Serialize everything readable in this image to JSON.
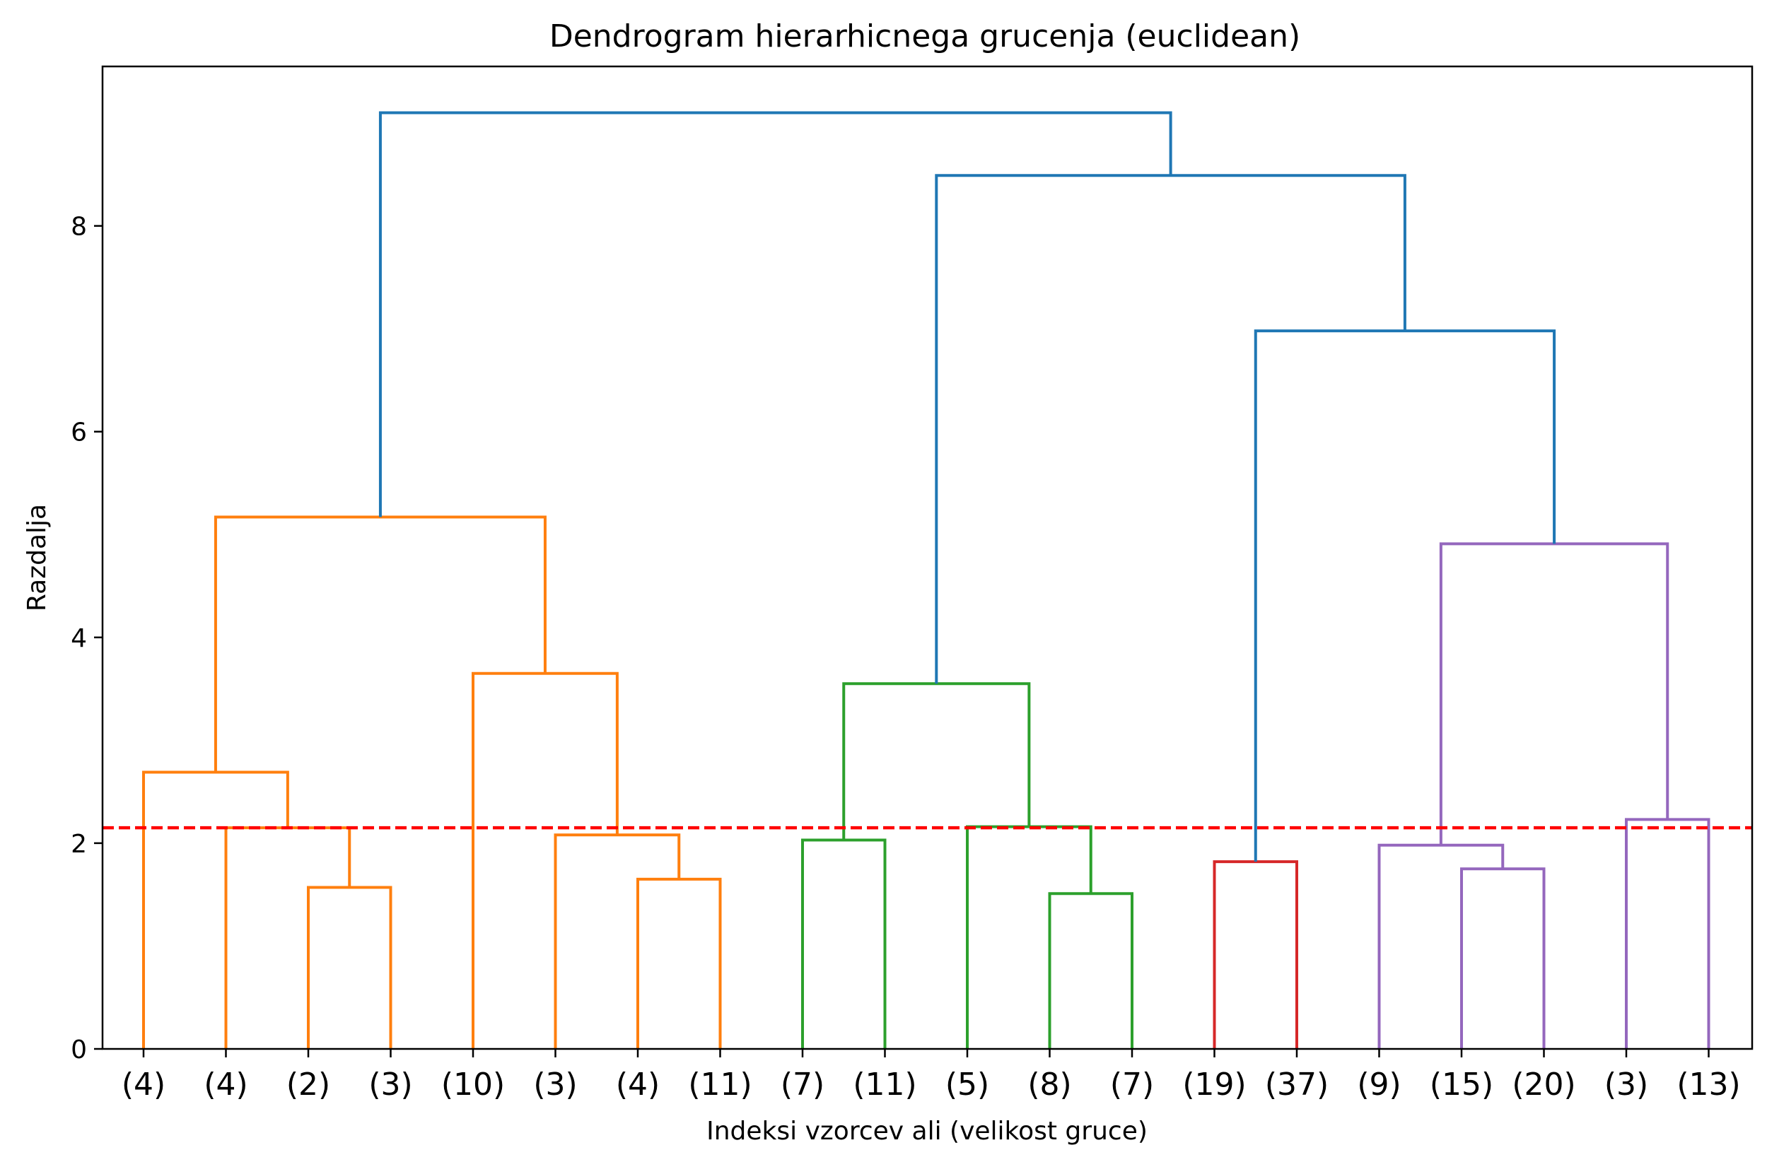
{
  "chart_data": {
    "type": "dendrogram",
    "title": "Dendrogram hierarhicnega grucenja (euclidean)",
    "xlabel": "Indeksi vzorcev ali (velikost gruce)",
    "ylabel": "Razdalja",
    "ylim": [
      0,
      9.55
    ],
    "yticks": [
      0,
      2,
      4,
      6,
      8
    ],
    "grid": false,
    "leaves": [
      "(4)",
      "(4)",
      "(2)",
      "(3)",
      "(10)",
      "(3)",
      "(4)",
      "(11)",
      "(7)",
      "(11)",
      "(5)",
      "(8)",
      "(7)",
      "(19)",
      "(37)",
      "(9)",
      "(15)",
      "(20)",
      "(3)",
      "(13)"
    ],
    "cut_line": {
      "y": 2.15,
      "color": "#ff0000",
      "style": "dashed"
    },
    "colors": {
      "orange": "#ff7f0e",
      "green": "#2ca02c",
      "red": "#d62728",
      "purple": "#9467bd",
      "blue": "#1f77b4"
    },
    "links": [
      {
        "left": 2,
        "right": 3,
        "height": 1.57,
        "color": "orange"
      },
      {
        "left": 1,
        "right": "L0",
        "height": 2.15,
        "color": "orange"
      },
      {
        "left": 0,
        "right": "L1",
        "height": 2.69,
        "color": "orange"
      },
      {
        "left": 6,
        "right": 7,
        "height": 1.65,
        "color": "orange"
      },
      {
        "left": 5,
        "right": "L3",
        "height": 2.08,
        "color": "orange"
      },
      {
        "left": 4,
        "right": "L4",
        "height": 3.65,
        "color": "orange"
      },
      {
        "left": "L2",
        "right": "L5",
        "height": 5.17,
        "color": "orange"
      },
      {
        "left": 8,
        "right": 9,
        "height": 2.03,
        "color": "green"
      },
      {
        "left": 11,
        "right": 12,
        "height": 1.51,
        "color": "green"
      },
      {
        "left": 10,
        "right": "L8",
        "height": 2.16,
        "color": "green"
      },
      {
        "left": "L7",
        "right": "L9",
        "height": 3.55,
        "color": "green"
      },
      {
        "left": 13,
        "right": 14,
        "height": 1.82,
        "color": "red"
      },
      {
        "left": 16,
        "right": 17,
        "height": 1.75,
        "color": "purple"
      },
      {
        "left": 15,
        "right": "L12",
        "height": 1.98,
        "color": "purple"
      },
      {
        "left": 18,
        "right": 19,
        "height": 2.23,
        "color": "purple"
      },
      {
        "left": "L13",
        "right": "L14",
        "height": 4.91,
        "color": "purple"
      },
      {
        "left": "L11",
        "right": "L15",
        "height": 6.98,
        "color": "blue"
      },
      {
        "left": "L10",
        "right": "L16",
        "height": 8.49,
        "color": "blue"
      },
      {
        "left": "L6",
        "right": "L17",
        "height": 9.1,
        "color": "blue"
      }
    ]
  }
}
